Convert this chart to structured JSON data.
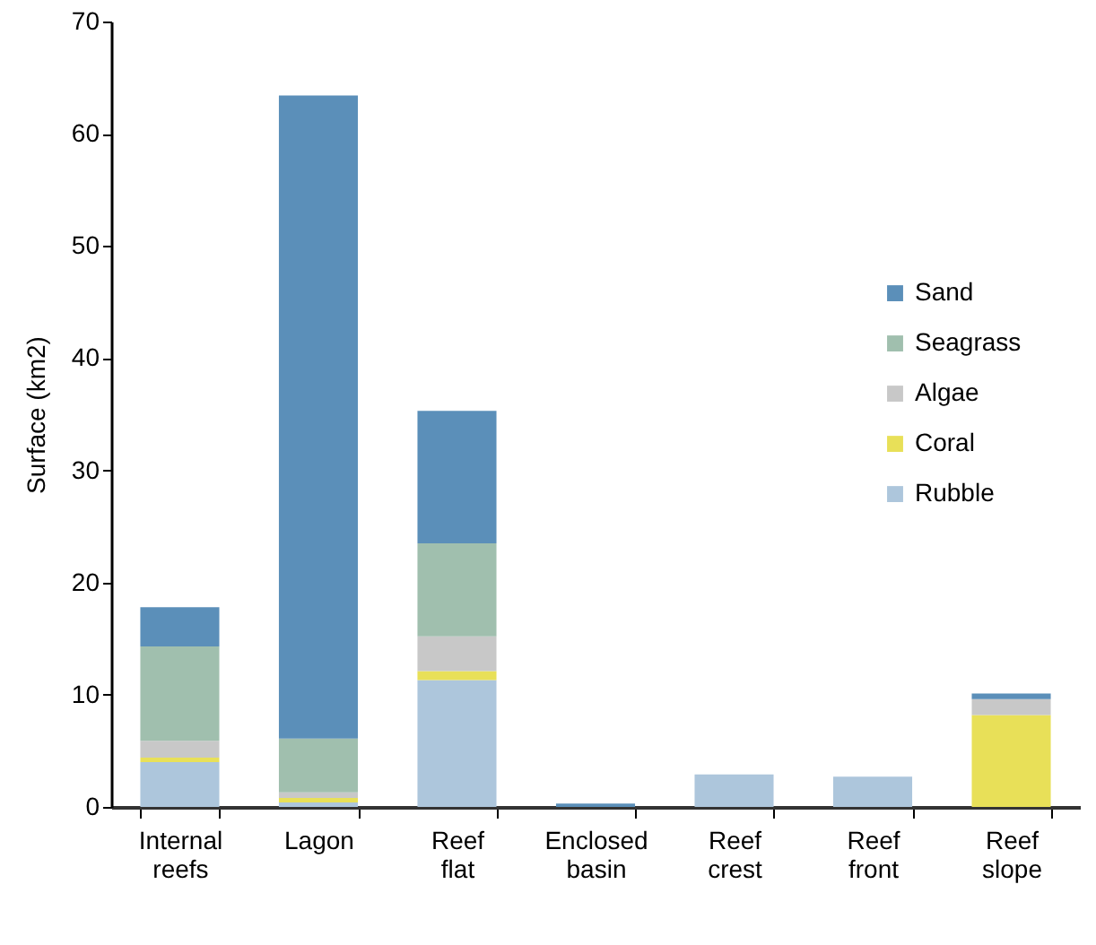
{
  "chart_data": {
    "type": "bar",
    "stacked": true,
    "ylabel": "Surface (km2)",
    "categories": [
      "Internal reefs",
      "Lagon",
      "Reef flat",
      "Enclosed basin",
      "Reef crest",
      "Reef front",
      "Reef slope"
    ],
    "series": [
      {
        "name": "Rubble",
        "color": "#adc6dc",
        "values": [
          4.0,
          0.4,
          11.3,
          0,
          2.9,
          2.7,
          0
        ]
      },
      {
        "name": "Coral",
        "color": "#e8e058",
        "values": [
          0.4,
          0.4,
          0.8,
          0,
          0,
          0,
          8.2
        ]
      },
      {
        "name": "Algae",
        "color": "#c8c8c8",
        "values": [
          1.5,
          0.5,
          3.1,
          0,
          0,
          0,
          1.4
        ]
      },
      {
        "name": "Seagrass",
        "color": "#a0bfae",
        "values": [
          8.4,
          4.8,
          8.3,
          0,
          0,
          0,
          0
        ]
      },
      {
        "name": "Sand",
        "color": "#5b8fb9",
        "values": [
          3.5,
          57.3,
          11.8,
          0.3,
          0,
          0,
          0.5
        ]
      }
    ],
    "ylim": [
      0,
      70
    ],
    "yticks": [
      0,
      10,
      20,
      30,
      40,
      50,
      60,
      70
    ],
    "grid": false,
    "legend": "right"
  }
}
